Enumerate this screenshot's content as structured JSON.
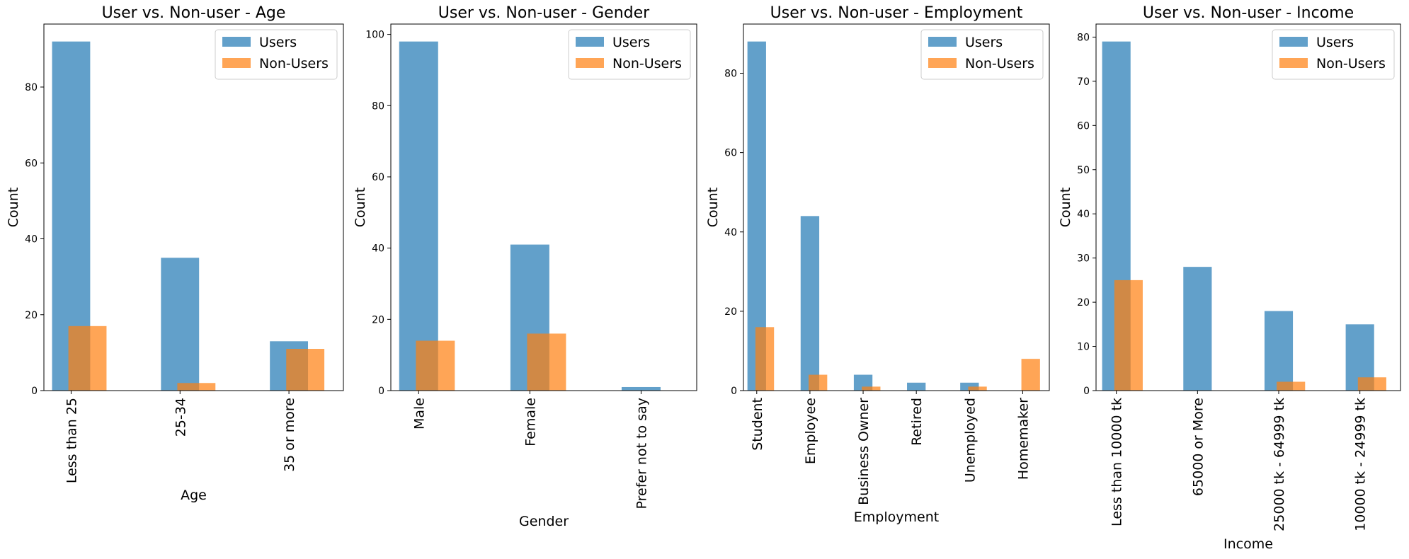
{
  "legend": {
    "users_label": "Users",
    "nonusers_label": "Non-Users"
  },
  "colors": {
    "users": "#1f77b4",
    "nonusers": "#ff7f0e"
  },
  "chart_data": [
    {
      "type": "bar",
      "title": "User vs. Non-user - Age",
      "xlabel": "Age",
      "ylabel": "Count",
      "categories": [
        "Less than 25",
        "25-34",
        "35 or more"
      ],
      "series": [
        {
          "name": "Users",
          "values": [
            92,
            35,
            13
          ]
        },
        {
          "name": "Non-Users",
          "values": [
            17,
            2,
            11
          ]
        }
      ],
      "ylim": [
        0,
        96.6
      ],
      "yticks": [
        0,
        20,
        40,
        60,
        80
      ],
      "legend_position": "top-right",
      "grid": false
    },
    {
      "type": "bar",
      "title": "User vs. Non-user - Gender",
      "xlabel": "Gender",
      "ylabel": "Count",
      "categories": [
        "Male",
        "Female",
        "Prefer not to say"
      ],
      "series": [
        {
          "name": "Users",
          "values": [
            98,
            41,
            1
          ]
        },
        {
          "name": "Non-Users",
          "values": [
            14,
            16,
            0
          ]
        }
      ],
      "ylim": [
        0,
        102.9
      ],
      "yticks": [
        0,
        20,
        40,
        60,
        80,
        100
      ],
      "legend_position": "top-right",
      "grid": false
    },
    {
      "type": "bar",
      "title": "User vs. Non-user - Employment",
      "xlabel": "Employment",
      "ylabel": "Count",
      "categories": [
        "Student",
        "Employee",
        "Business Owner",
        "Retired",
        "Unemployed",
        "Homemaker"
      ],
      "series": [
        {
          "name": "Users",
          "values": [
            88,
            44,
            4,
            2,
            2,
            0
          ]
        },
        {
          "name": "Non-Users",
          "values": [
            16,
            4,
            1,
            0,
            1,
            8
          ]
        }
      ],
      "ylim": [
        0,
        92.4
      ],
      "yticks": [
        0,
        20,
        40,
        60,
        80
      ],
      "legend_position": "top-right",
      "grid": false
    },
    {
      "type": "bar",
      "title": "User vs. Non-user - Income",
      "xlabel": "Income",
      "ylabel": "Count",
      "categories": [
        "Less than 10000 tk",
        "65000 or More",
        "25000 tk - 64999 tk",
        "10000 tk - 24999 tk"
      ],
      "series": [
        {
          "name": "Users",
          "values": [
            79,
            28,
            18,
            15
          ]
        },
        {
          "name": "Non-Users",
          "values": [
            25,
            0,
            2,
            3
          ]
        }
      ],
      "ylim": [
        0,
        82.95
      ],
      "yticks": [
        0,
        10,
        20,
        30,
        40,
        50,
        60,
        70,
        80
      ],
      "legend_position": "top-right",
      "grid": false
    }
  ]
}
